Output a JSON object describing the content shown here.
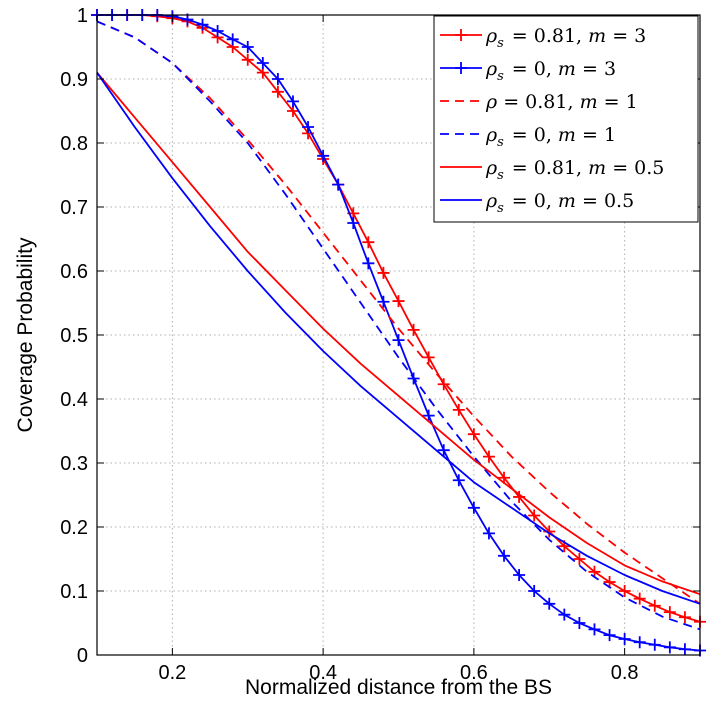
{
  "chart_data": {
    "type": "line",
    "xlabel": "Normalized distance from the BS",
    "ylabel": "Coverage Probability",
    "xlim": [
      0.1,
      0.9
    ],
    "ylim": [
      0,
      1
    ],
    "xticks": [
      0.2,
      0.4,
      0.6,
      0.8
    ],
    "xtick_labels": [
      "0.2",
      "0.4",
      "0.6",
      "0.8"
    ],
    "yticks": [
      0,
      0.1,
      0.2,
      0.3,
      0.4,
      0.5,
      0.6,
      0.7,
      0.8,
      0.9,
      1
    ],
    "ytick_labels": [
      "0",
      "0.1",
      "0.2",
      "0.3",
      "0.4",
      "0.5",
      "0.6",
      "0.7",
      "0.8",
      "0.9",
      "1"
    ],
    "grid": true,
    "legend_position": "top-right",
    "series": [
      {
        "name": "ρs = 0.81, m = 3",
        "legend": {
          "sym": "ρ",
          "sub": "s",
          "val": " = 0.81, ",
          "m": "m",
          "mval": " = 3"
        },
        "color": "#ff0000",
        "dash": "solid",
        "marker": "plus",
        "x": [
          0.1,
          0.12,
          0.14,
          0.16,
          0.18,
          0.2,
          0.22,
          0.24,
          0.26,
          0.28,
          0.3,
          0.32,
          0.34,
          0.36,
          0.38,
          0.4,
          0.42,
          0.44,
          0.46,
          0.48,
          0.5,
          0.52,
          0.54,
          0.56,
          0.58,
          0.6,
          0.62,
          0.64,
          0.66,
          0.68,
          0.7,
          0.72,
          0.74,
          0.76,
          0.78,
          0.8,
          0.82,
          0.84,
          0.86,
          0.88,
          0.9
        ],
        "y": [
          1.0,
          1.0,
          1.0,
          1.0,
          0.998,
          0.995,
          0.99,
          0.98,
          0.965,
          0.95,
          0.93,
          0.91,
          0.88,
          0.85,
          0.815,
          0.775,
          0.735,
          0.69,
          0.645,
          0.597,
          0.553,
          0.508,
          0.465,
          0.423,
          0.383,
          0.345,
          0.31,
          0.277,
          0.247,
          0.218,
          0.193,
          0.17,
          0.15,
          0.13,
          0.114,
          0.1,
          0.088,
          0.077,
          0.067,
          0.059,
          0.052
        ]
      },
      {
        "name": "ρs = 0, m = 3",
        "legend": {
          "sym": "ρ",
          "sub": "s",
          "val": " = 0, ",
          "m": "m",
          "mval": " = 3"
        },
        "color": "#0000ff",
        "dash": "solid",
        "marker": "plus",
        "x": [
          0.1,
          0.12,
          0.14,
          0.16,
          0.18,
          0.2,
          0.22,
          0.24,
          0.26,
          0.28,
          0.3,
          0.32,
          0.34,
          0.36,
          0.38,
          0.4,
          0.42,
          0.44,
          0.46,
          0.48,
          0.5,
          0.52,
          0.54,
          0.56,
          0.58,
          0.6,
          0.62,
          0.64,
          0.66,
          0.68,
          0.7,
          0.72,
          0.74,
          0.76,
          0.78,
          0.8,
          0.82,
          0.84,
          0.86,
          0.88,
          0.9
        ],
        "y": [
          1.0,
          1.0,
          1.0,
          1.0,
          1.0,
          0.998,
          0.993,
          0.985,
          0.975,
          0.962,
          0.95,
          0.925,
          0.9,
          0.865,
          0.825,
          0.78,
          0.735,
          0.675,
          0.612,
          0.552,
          0.492,
          0.432,
          0.374,
          0.32,
          0.273,
          0.23,
          0.19,
          0.155,
          0.125,
          0.1,
          0.08,
          0.063,
          0.05,
          0.04,
          0.031,
          0.025,
          0.02,
          0.016,
          0.012,
          0.009,
          0.007
        ]
      },
      {
        "name": "ρ = 0.81, m = 1",
        "legend": {
          "sym": "ρ",
          "sub": "",
          "val": " = 0.81, ",
          "m": "m",
          "mval": " = 1"
        },
        "color": "#ff0000",
        "dash": "dashed",
        "marker": "none",
        "x": [
          0.1,
          0.15,
          0.2,
          0.25,
          0.3,
          0.35,
          0.4,
          0.45,
          0.5,
          0.55,
          0.6,
          0.65,
          0.7,
          0.75,
          0.8,
          0.85,
          0.9
        ],
        "y": [
          0.99,
          0.965,
          0.925,
          0.87,
          0.805,
          0.735,
          0.66,
          0.585,
          0.51,
          0.44,
          0.373,
          0.31,
          0.255,
          0.205,
          0.16,
          0.12,
          0.08
        ]
      },
      {
        "name": "ρs = 0, m = 1",
        "legend": {
          "sym": "ρ",
          "sub": "s",
          "val": " = 0, ",
          "m": "m",
          "mval": " = 1"
        },
        "color": "#0000ff",
        "dash": "dashed",
        "marker": "none",
        "x": [
          0.1,
          0.15,
          0.2,
          0.25,
          0.3,
          0.35,
          0.4,
          0.45,
          0.5,
          0.55,
          0.6,
          0.65,
          0.7,
          0.75,
          0.8,
          0.85,
          0.9
        ],
        "y": [
          0.99,
          0.965,
          0.925,
          0.865,
          0.8,
          0.72,
          0.635,
          0.55,
          0.465,
          0.385,
          0.31,
          0.24,
          0.18,
          0.13,
          0.09,
          0.06,
          0.04
        ]
      },
      {
        "name": "ρs = 0.81, m = 0.5",
        "legend": {
          "sym": "ρ",
          "sub": "s",
          "val": " = 0.81, ",
          "m": "m",
          "mval": " = 0.5"
        },
        "color": "#ff0000",
        "dash": "solid",
        "marker": "none",
        "x": [
          0.1,
          0.15,
          0.2,
          0.25,
          0.3,
          0.35,
          0.4,
          0.45,
          0.5,
          0.55,
          0.6,
          0.65,
          0.7,
          0.75,
          0.8,
          0.85,
          0.9
        ],
        "y": [
          0.91,
          0.84,
          0.77,
          0.7,
          0.63,
          0.57,
          0.51,
          0.455,
          0.405,
          0.355,
          0.305,
          0.26,
          0.215,
          0.175,
          0.14,
          0.115,
          0.095
        ]
      },
      {
        "name": "ρs = 0, m = 0.5",
        "legend": {
          "sym": "ρ",
          "sub": "s",
          "val": " = 0, ",
          "m": "m",
          "mval": " = 0.5"
        },
        "color": "#0000ff",
        "dash": "solid",
        "marker": "none",
        "x": [
          0.1,
          0.15,
          0.2,
          0.25,
          0.3,
          0.35,
          0.4,
          0.45,
          0.5,
          0.55,
          0.6,
          0.65,
          0.7,
          0.75,
          0.8,
          0.85,
          0.9
        ],
        "y": [
          0.91,
          0.825,
          0.745,
          0.67,
          0.6,
          0.535,
          0.475,
          0.42,
          0.37,
          0.32,
          0.27,
          0.23,
          0.19,
          0.155,
          0.125,
          0.1,
          0.08
        ]
      }
    ]
  }
}
